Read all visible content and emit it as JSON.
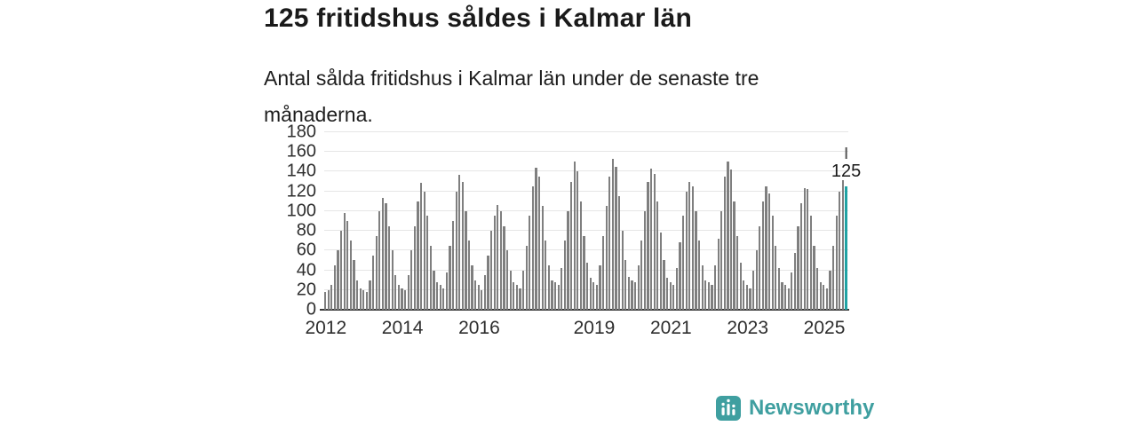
{
  "header": {
    "title": "125 fritidshus såldes i Kalmar län",
    "subtitle": "Antal sålda fritidshus i Kalmar län under de senaste tre månaderna."
  },
  "chart_data": {
    "type": "bar",
    "title": "125 fritidshus såldes i Kalmar län",
    "subtitle": "Antal sålda fritidshus i Kalmar län under de senaste tre månaderna.",
    "start_year": 2012,
    "x_tick_labels": [
      "2012",
      "2014",
      "2016",
      "2019",
      "2021",
      "2023",
      "2025"
    ],
    "y_ticks": [
      0,
      20,
      40,
      60,
      80,
      100,
      120,
      140,
      160,
      180
    ],
    "ylim": [
      0,
      180
    ],
    "grid": true,
    "values": [
      18,
      20,
      25,
      45,
      60,
      80,
      98,
      90,
      70,
      50,
      30,
      22,
      20,
      18,
      30,
      55,
      75,
      100,
      113,
      108,
      85,
      60,
      35,
      25,
      22,
      20,
      35,
      60,
      85,
      110,
      129,
      120,
      95,
      65,
      40,
      28,
      25,
      22,
      38,
      65,
      90,
      120,
      137,
      130,
      100,
      70,
      45,
      30,
      25,
      20,
      35,
      55,
      80,
      95,
      106,
      100,
      85,
      60,
      40,
      28,
      25,
      22,
      40,
      65,
      95,
      125,
      144,
      135,
      105,
      70,
      45,
      30,
      28,
      25,
      42,
      70,
      100,
      130,
      150,
      140,
      110,
      75,
      48,
      32,
      28,
      25,
      45,
      75,
      105,
      135,
      153,
      145,
      115,
      80,
      50,
      33,
      30,
      28,
      45,
      70,
      100,
      130,
      143,
      138,
      110,
      78,
      50,
      32,
      28,
      25,
      42,
      68,
      95,
      120,
      130,
      125,
      100,
      70,
      45,
      30,
      28,
      25,
      45,
      72,
      100,
      135,
      150,
      142,
      110,
      75,
      48,
      30,
      25,
      22,
      40,
      60,
      85,
      110,
      125,
      118,
      95,
      65,
      42,
      28,
      25,
      22,
      38,
      58,
      85,
      108,
      123,
      122,
      95,
      65,
      42,
      28,
      25,
      22,
      40,
      65,
      95,
      120,
      131,
      125
    ],
    "highlight_last": true,
    "annotation": {
      "text": "125",
      "target": "last-bar"
    },
    "bar_color": "#7f7f7f",
    "highlight_color": "#1fa3a4",
    "legend": "none"
  },
  "footer": {
    "brand": "Newsworthy",
    "brand_color": "#3f9fa0",
    "logo_icon": "bar-chart-icon"
  }
}
